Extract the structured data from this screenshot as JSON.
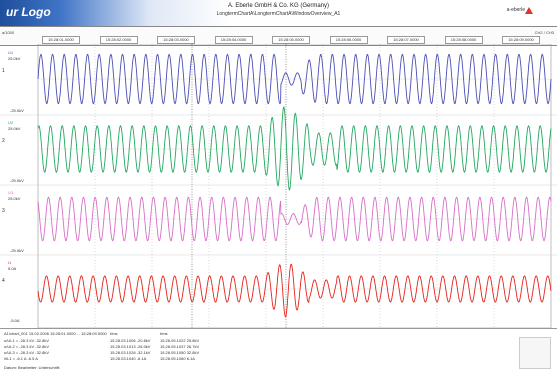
{
  "header": {
    "logo": "ur Logo",
    "company": "A. Eberle GmbH & Co. KG (Germany)",
    "path": "LongtermChartA\\LongtermChartA\\WindowOverview_A1",
    "brand": "a-eberle"
  },
  "ruler": {
    "left_label": "a/1000",
    "right_label": "CH2 / CH3",
    "time_marks": [
      "15:28:01.0000",
      "15:28:02.0000",
      "15:28:03.0000",
      "15:28:04.0000",
      "15:28:05.0000",
      "15:28:06.0000",
      "15:28:07.0000",
      "15:28:08.0000",
      "15:28:09.0000"
    ]
  },
  "channels": [
    {
      "num": "1",
      "label": "U1",
      "scale_top": "25.0kV",
      "scale_bot": "-25.0kV",
      "color": "#4b4fb5",
      "amplitude": 0.85,
      "event": "dip"
    },
    {
      "num": "2",
      "label": "U2",
      "scale_top": "25.0kV",
      "scale_bot": "-25.0kV",
      "color": "#22a860",
      "amplitude": 0.8,
      "event": "burst"
    },
    {
      "num": "3",
      "label": "U3",
      "scale_top": "25.0kV",
      "scale_bot": "-25.0kV",
      "color": "#d770c8",
      "amplitude": 0.75,
      "event": "dip"
    },
    {
      "num": "4",
      "label": "I1",
      "scale_top": "5.0A",
      "scale_bot": "-5.0A",
      "color": "#e5241a",
      "amplitude": 0.45,
      "event": "burst"
    }
  ],
  "footer": {
    "row1": "A1/chart_001 15.02.2006 15:28:01.0000 ... 15:28:09.0000",
    "row2": "u/UL1 =   -28.3 kV   -32.8kV",
    "row3": "u/UL2 =   -28.3 kV   -32.8kV",
    "row4": "u/UL3 =   -28.3 kV   -32.8kV",
    "row5": "i/IL1 =     -6.1 A    -6.5 A",
    "row6": "Datum:       Bearbeiter:       Unterschrift:",
    "mid_head": "t/ms",
    "mid_values": [
      "15.28.03.1006  -20.8kV",
      "15.28.03.1013  -26.0kV",
      "15.28.03.1028  -32.1kV",
      "15.28.03.1040  -6.1A"
    ],
    "right_head": "t/ms",
    "right_values": [
      "15.28.05.1022  25.8kV",
      "15.28.05.1037  26.7kV",
      "15.28.05.1050  32.8kV",
      "15.28.05.1060  6.1A"
    ]
  }
}
